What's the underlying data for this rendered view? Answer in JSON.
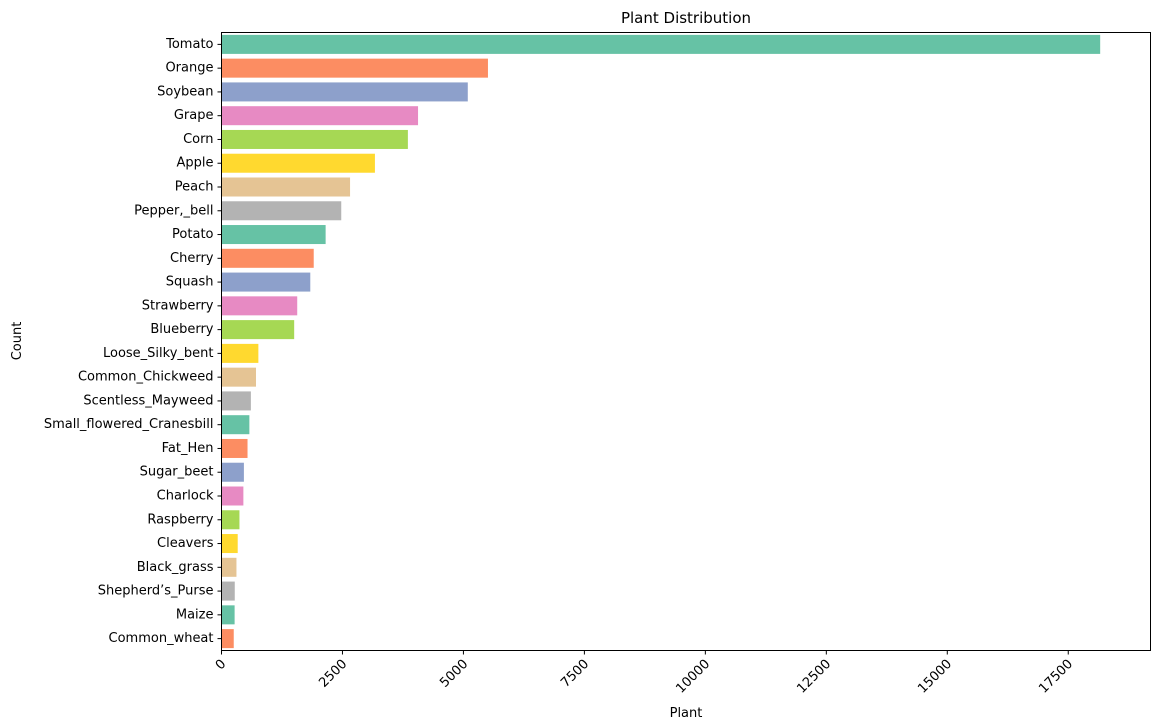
{
  "chart_data": {
    "type": "bar",
    "orientation": "horizontal",
    "title": "Plant Distribution",
    "xlabel": "Plant",
    "ylabel": "Count",
    "xlim": [
      0,
      19200
    ],
    "xticks": [
      0,
      2500,
      5000,
      7500,
      10000,
      12500,
      15000,
      17500
    ],
    "tick_label_rotation": 45,
    "grid": false,
    "categories": [
      "Tomato",
      "Orange",
      "Soybean",
      "Grape",
      "Corn",
      "Apple",
      "Peach",
      "Pepper,_bell",
      "Potato",
      "Cherry",
      "Squash",
      "Strawberry",
      "Blueberry",
      "Loose_Silky_bent",
      "Common_Chickweed",
      "Scentless_Mayweed",
      "Small_flowered_Cranesbill",
      "Fat_Hen",
      "Sugar_beet",
      "Charlock",
      "Raspberry",
      "Cleavers",
      "Black_grass",
      "Shepherd’s_Purse",
      "Maize",
      "Common_wheat"
    ],
    "values": [
      18160,
      5507,
      5090,
      4062,
      3852,
      3171,
      2657,
      2475,
      2152,
      1906,
      1835,
      1565,
      1502,
      762,
      713,
      607,
      576,
      538,
      463,
      452,
      371,
      335,
      309,
      274,
      271,
      253
    ],
    "palette": [
      "#66c2a5",
      "#fc8d62",
      "#8da0cb",
      "#e78ac3",
      "#a6d854",
      "#ffd92f",
      "#e5c494",
      "#b3b3b3"
    ]
  }
}
